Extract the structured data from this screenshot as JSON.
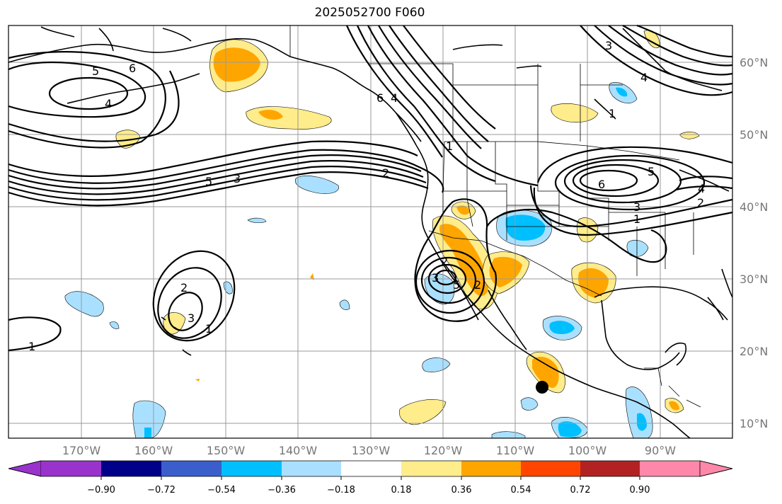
{
  "title": "2025052700 F060",
  "lat_labels": [
    "60°N",
    "50°N",
    "40°N",
    "30°N",
    "20°N",
    "10°N"
  ],
  "lon_labels": [
    "170°W",
    "160°W",
    "150°W",
    "140°W",
    "130°W",
    "120°W",
    "110°W",
    "100°W",
    "90°W"
  ],
  "colorbar": {
    "ticks": [
      "−0.90",
      "−0.72",
      "−0.54",
      "−0.36",
      "−0.18",
      "0.18",
      "0.36",
      "0.54",
      "0.72",
      "0.90"
    ],
    "colors": [
      "#9933cc",
      "#000088",
      "#3a5fcd",
      "#00bfff",
      "#aae0ff",
      "#ffffff",
      "#ffec8b",
      "#ffa500",
      "#ff4500",
      "#b22222",
      "#ff88aa"
    ]
  },
  "shading_colors": {
    "light_yellow": "#ffec8b",
    "orange": "#ffa500",
    "light_blue": "#aae0ff",
    "deep_sky_blue": "#00bfff"
  },
  "contour_labels": [
    "5",
    "6",
    "4",
    "2",
    "3",
    "1",
    "6",
    "4",
    "1",
    "2",
    "3",
    "6",
    "5",
    "3",
    "2",
    "5",
    "1",
    "2",
    "4",
    "1",
    "4",
    "3",
    "2",
    "5",
    "3",
    "1"
  ],
  "marker": {
    "lat": 15,
    "lon": -106,
    "color": "#000000"
  }
}
